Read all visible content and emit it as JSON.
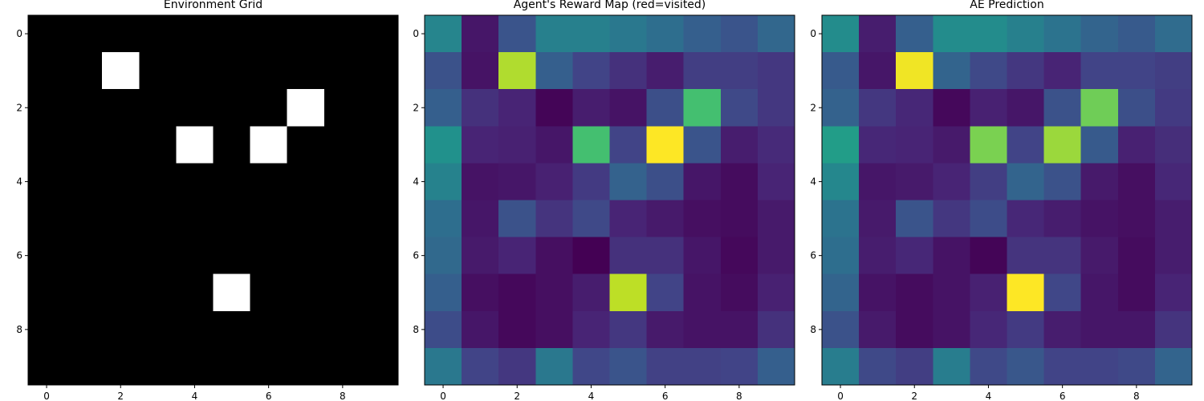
{
  "chart_data": [
    {
      "type": "heatmap",
      "title": "Environment Grid",
      "colormap": "gray",
      "vmin": 0,
      "vmax": 1,
      "x_ticks": [
        0,
        2,
        4,
        6,
        8
      ],
      "y_ticks": [
        0,
        2,
        4,
        6,
        8
      ],
      "values": [
        [
          0,
          0,
          0,
          0,
          0,
          0,
          0,
          0,
          0,
          0
        ],
        [
          0,
          0,
          1,
          0,
          0,
          0,
          0,
          0,
          0,
          0
        ],
        [
          0,
          0,
          0,
          0,
          0,
          0,
          0,
          1,
          0,
          0
        ],
        [
          0,
          0,
          0,
          0,
          1,
          0,
          1,
          0,
          0,
          0
        ],
        [
          0,
          0,
          0,
          0,
          0,
          0,
          0,
          0,
          0,
          0
        ],
        [
          0,
          0,
          0,
          0,
          0,
          0,
          0,
          0,
          0,
          0
        ],
        [
          0,
          0,
          0,
          0,
          0,
          0,
          0,
          0,
          0,
          0
        ],
        [
          0,
          0,
          0,
          0,
          0,
          1,
          0,
          0,
          0,
          0
        ],
        [
          0,
          0,
          0,
          0,
          0,
          0,
          0,
          0,
          0,
          0
        ],
        [
          0,
          0,
          0,
          0,
          0,
          0,
          0,
          0,
          0,
          0
        ]
      ]
    },
    {
      "type": "heatmap",
      "title": "Agent's Reward Map (red=visited)",
      "colormap": "viridis",
      "vmin": 0,
      "vmax": 1,
      "x_ticks": [
        0,
        2,
        4,
        6,
        8
      ],
      "y_ticks": [
        0,
        2,
        4,
        6,
        8
      ],
      "values": [
        [
          0.45,
          0.06,
          0.26,
          0.43,
          0.43,
          0.4,
          0.36,
          0.3,
          0.26,
          0.33
        ],
        [
          0.25,
          0.05,
          0.88,
          0.3,
          0.2,
          0.14,
          0.08,
          0.18,
          0.18,
          0.16
        ],
        [
          0.3,
          0.14,
          0.1,
          0.01,
          0.08,
          0.05,
          0.24,
          0.7,
          0.22,
          0.16
        ],
        [
          0.5,
          0.1,
          0.09,
          0.06,
          0.7,
          0.2,
          1.0,
          0.26,
          0.08,
          0.12
        ],
        [
          0.44,
          0.05,
          0.06,
          0.09,
          0.17,
          0.31,
          0.24,
          0.06,
          0.03,
          0.1
        ],
        [
          0.36,
          0.06,
          0.25,
          0.15,
          0.22,
          0.1,
          0.07,
          0.04,
          0.03,
          0.07
        ],
        [
          0.34,
          0.07,
          0.1,
          0.04,
          0.0,
          0.14,
          0.14,
          0.06,
          0.02,
          0.07
        ],
        [
          0.3,
          0.04,
          0.02,
          0.04,
          0.08,
          0.9,
          0.2,
          0.05,
          0.03,
          0.09
        ],
        [
          0.23,
          0.06,
          0.02,
          0.04,
          0.1,
          0.16,
          0.07,
          0.05,
          0.05,
          0.14
        ],
        [
          0.4,
          0.2,
          0.16,
          0.4,
          0.21,
          0.26,
          0.19,
          0.19,
          0.2,
          0.3
        ]
      ]
    },
    {
      "type": "heatmap",
      "title": "AE Prediction",
      "colormap": "viridis",
      "vmin": 0,
      "vmax": 1,
      "x_ticks": [
        0,
        2,
        4,
        6,
        8
      ],
      "y_ticks": [
        0,
        2,
        4,
        6,
        8
      ],
      "values": [
        [
          0.48,
          0.08,
          0.3,
          0.48,
          0.48,
          0.43,
          0.38,
          0.32,
          0.28,
          0.35
        ],
        [
          0.28,
          0.06,
          0.98,
          0.32,
          0.22,
          0.16,
          0.1,
          0.2,
          0.2,
          0.18
        ],
        [
          0.31,
          0.16,
          0.11,
          0.02,
          0.09,
          0.06,
          0.25,
          0.78,
          0.24,
          0.17
        ],
        [
          0.55,
          0.11,
          0.1,
          0.07,
          0.8,
          0.2,
          0.85,
          0.28,
          0.09,
          0.13
        ],
        [
          0.46,
          0.06,
          0.07,
          0.1,
          0.18,
          0.32,
          0.25,
          0.07,
          0.04,
          0.11
        ],
        [
          0.38,
          0.07,
          0.26,
          0.16,
          0.23,
          0.11,
          0.08,
          0.05,
          0.04,
          0.08
        ],
        [
          0.36,
          0.08,
          0.11,
          0.05,
          0.01,
          0.15,
          0.15,
          0.07,
          0.03,
          0.08
        ],
        [
          0.32,
          0.05,
          0.03,
          0.05,
          0.09,
          1.0,
          0.21,
          0.06,
          0.03,
          0.1
        ],
        [
          0.25,
          0.07,
          0.03,
          0.05,
          0.11,
          0.17,
          0.08,
          0.06,
          0.06,
          0.15
        ],
        [
          0.42,
          0.22,
          0.18,
          0.42,
          0.22,
          0.27,
          0.2,
          0.2,
          0.22,
          0.32
        ]
      ]
    }
  ]
}
